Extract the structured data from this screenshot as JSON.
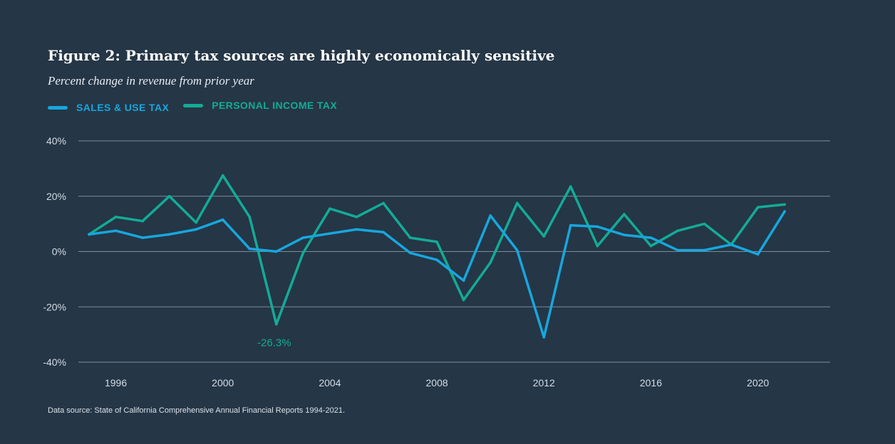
{
  "chart_data": {
    "type": "line",
    "title": "Figure 2: Primary tax sources are highly economically sensitive",
    "subtitle": "Percent change in revenue from prior year",
    "source": "Data source: State of California Comprehensive Annual Financial Reports 1994-2021.",
    "x": [
      1995,
      1996,
      1997,
      1998,
      1999,
      2000,
      2001,
      2002,
      2003,
      2004,
      2005,
      2006,
      2007,
      2008,
      2009,
      2010,
      2011,
      2012,
      2013,
      2014,
      2015,
      2016,
      2017,
      2018,
      2019,
      2020,
      2021
    ],
    "xlim": [
      1994.6,
      2022.7
    ],
    "x_ticks": [
      1996,
      2000,
      2004,
      2008,
      2012,
      2016,
      2020
    ],
    "x_tick_labels": [
      "1996",
      "2000",
      "2004",
      "2008",
      "2012",
      "2016",
      "2020"
    ],
    "ylim": [
      -40,
      40
    ],
    "y_ticks": [
      40,
      20,
      0,
      -20,
      -40
    ],
    "y_tick_labels": [
      "40%",
      "20%",
      "0%",
      "-20%",
      "-40%"
    ],
    "grid": true,
    "series": [
      {
        "name": "SALES & USE TAX",
        "color": "#16a7df",
        "values": [
          6.2,
          7.5,
          5.0,
          6.2,
          8.0,
          11.5,
          1.0,
          0.0,
          5.0,
          6.5,
          8.0,
          7.0,
          -0.5,
          -3.0,
          -10.5,
          13.0,
          0.5,
          -31.0,
          9.5,
          9.0,
          6.0,
          5.0,
          0.5,
          0.5,
          2.5,
          -1.0,
          14.5
        ]
      },
      {
        "name": "PERSONAL INCOME TAX",
        "color": "#13ab96",
        "values": [
          6.2,
          12.5,
          11.0,
          20.0,
          10.5,
          27.5,
          12.5,
          -26.3,
          -0.5,
          15.5,
          12.5,
          17.5,
          5.0,
          3.5,
          -17.5,
          -4.0,
          17.5,
          5.5,
          23.5,
          2.0,
          13.5,
          2.0,
          7.5,
          10.0,
          2.5,
          16.0,
          17.0
        ]
      }
    ],
    "annotations": [
      {
        "text": "-26.3%",
        "x": 2002,
        "y": -26.3,
        "series": "PERSONAL INCOME TAX"
      }
    ]
  }
}
